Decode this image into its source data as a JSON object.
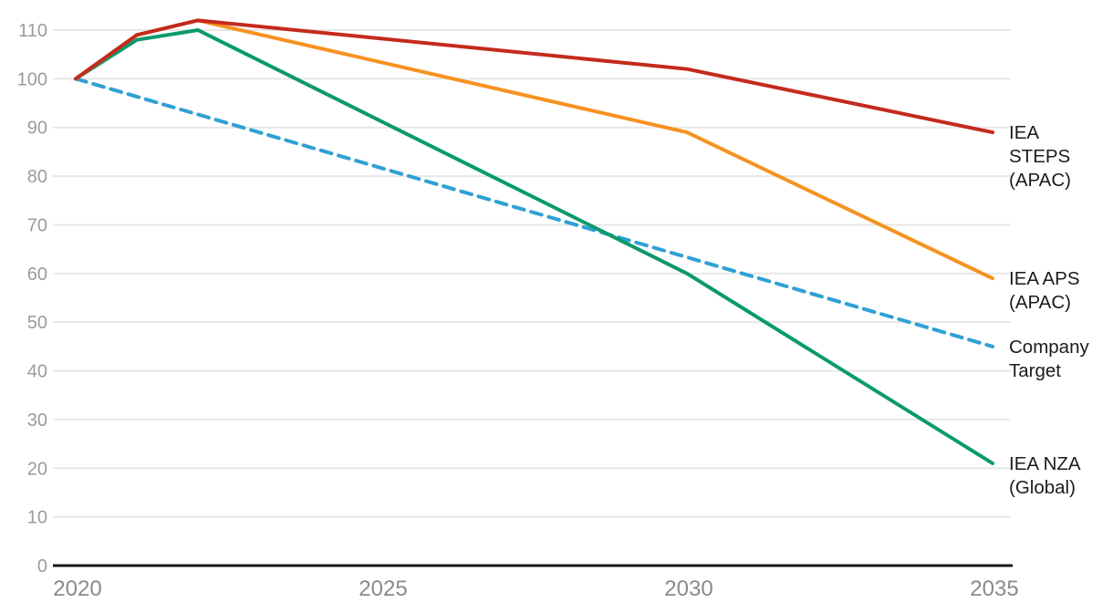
{
  "chart_data": {
    "type": "line",
    "title": "",
    "x_axis": {
      "label": "",
      "ticks": [
        2020,
        2025,
        2030,
        2035
      ],
      "range": [
        2020,
        2035
      ]
    },
    "y_axis": {
      "label": "",
      "ticks": [
        0,
        10,
        20,
        30,
        40,
        50,
        60,
        70,
        80,
        90,
        100,
        110
      ],
      "range": [
        0,
        110
      ]
    },
    "grid": true,
    "legend_position": "right-of-line-ends",
    "series": [
      {
        "id": "iea-steps-apac",
        "name": "IEA STEPS (APAC)",
        "label_lines": [
          "IEA",
          "STEPS",
          "(APAC)"
        ],
        "color": "#c42a1d",
        "dashed": false,
        "z": 4,
        "points": [
          [
            2020,
            100
          ],
          [
            2021,
            109
          ],
          [
            2022,
            112
          ],
          [
            2030,
            102
          ],
          [
            2035,
            89
          ]
        ]
      },
      {
        "id": "iea-aps-apac",
        "name": "IEA APS (APAC)",
        "label_lines": [
          "IEA APS",
          "(APAC)"
        ],
        "color": "#f79220",
        "dashed": false,
        "z": 3,
        "points": [
          [
            2020,
            100
          ],
          [
            2021,
            109
          ],
          [
            2022,
            112
          ],
          [
            2030,
            89
          ],
          [
            2035,
            59
          ]
        ]
      },
      {
        "id": "company-target",
        "name": "Company Target",
        "label_lines": [
          "Company",
          "Target"
        ],
        "color": "#2ea1d4",
        "dashed": true,
        "z": 1,
        "points": [
          [
            2020,
            100
          ],
          [
            2035,
            45
          ]
        ]
      },
      {
        "id": "iea-nza-global",
        "name": "IEA NZA (Global)",
        "label_lines": [
          "IEA NZA",
          "(Global)"
        ],
        "color": "#0a9a6c",
        "dashed": false,
        "z": 2,
        "points": [
          [
            2020,
            100
          ],
          [
            2021,
            108
          ],
          [
            2022,
            110
          ],
          [
            2030,
            60
          ],
          [
            2035,
            21
          ]
        ]
      }
    ],
    "style": {
      "grid_color": "#e7e7e7",
      "axis_color": "#161616",
      "y_tick_color": "#9b9b9b",
      "x_tick_color": "#8a8a8a",
      "series_label_color": "#1b1b1b",
      "background": "#ffffff"
    }
  }
}
